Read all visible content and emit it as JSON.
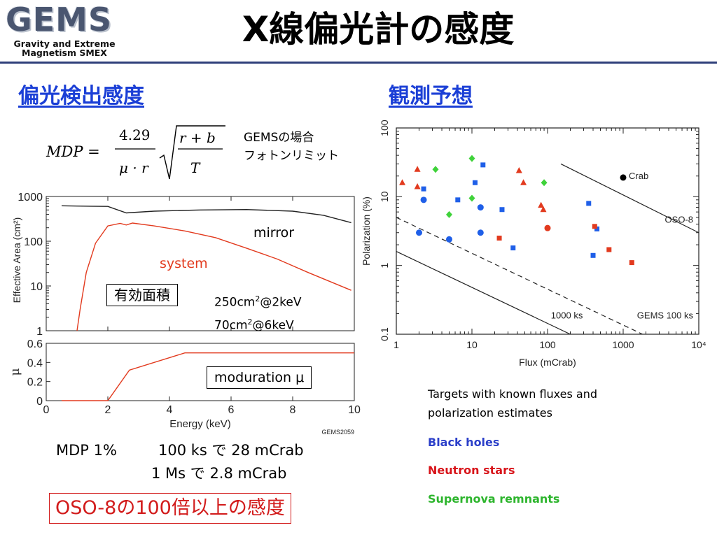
{
  "logo": {
    "word": "GEMS",
    "subtitle_line1": "Gravity and Extreme",
    "subtitle_line2": "Magnetism SMEX"
  },
  "slide_title": "X線偏光計の感度",
  "left_heading": "偏光検出感度",
  "right_heading": "観測予想",
  "gems_case": {
    "line1": "GEMSの場合",
    "line2": "フォトンリミット"
  },
  "formula": {
    "lhs": "MDP =",
    "numerator": "4.29",
    "denominator": "μ · r",
    "sqrt_numerator": "r + b",
    "sqrt_denominator": "T"
  },
  "effective_area_label": "有効面積",
  "area_values": {
    "line1_pre": "250cm",
    "line1_post": "@2keV",
    "line2_pre": "70cm",
    "line2_post": "@6keV",
    "sup": "2"
  },
  "modulation_label": "moduration μ",
  "mdp_lines": {
    "lead": "MDP 1%",
    "line1": "100 ks で 28 mCrab",
    "line2": "1 Ms で 2.8 mCrab"
  },
  "oso_statement": "OSO-8の100倍以上の感度",
  "targets_text": {
    "line1": "Targets with known fluxes and",
    "line2": "polarization estimates"
  },
  "legend": {
    "black_holes": "Black holes",
    "neutron_stars": "Neutron stars",
    "supernova_remnants": "Supernova remnants"
  },
  "colors": {
    "black_holes": "#1f5fe8",
    "neutron_stars": "#e23a1e",
    "supernova_remnants": "#3fd23a",
    "system_curve": "#e23a1e",
    "heading": "#1b3fd6",
    "legend_black_holes": "#2b3fc9",
    "legend_neutron_stars": "#d8141a",
    "legend_snr": "#2db52d"
  },
  "chart_data": [
    {
      "type": "line",
      "ylabel": "Effective Area (cm²)",
      "ylog": true,
      "ylim": [
        1,
        1000
      ],
      "xlim": [
        0,
        10
      ],
      "yticks": [
        "1000",
        "100",
        "10",
        "1"
      ],
      "series": [
        {
          "name": "mirror",
          "points": [
            [
              0.5,
              620
            ],
            [
              1.0,
              610
            ],
            [
              2.0,
              600
            ],
            [
              2.6,
              430
            ],
            [
              3.5,
              470
            ],
            [
              5.0,
              500
            ],
            [
              6.5,
              510
            ],
            [
              8.0,
              470
            ],
            [
              9.0,
              380
            ],
            [
              9.9,
              260
            ]
          ]
        },
        {
          "name": "system",
          "points": [
            [
              1.0,
              1
            ],
            [
              1.1,
              3
            ],
            [
              1.3,
              20
            ],
            [
              1.6,
              90
            ],
            [
              2.0,
              220
            ],
            [
              2.4,
              250
            ],
            [
              2.6,
              230
            ],
            [
              2.8,
              255
            ],
            [
              3.5,
              220
            ],
            [
              4.5,
              170
            ],
            [
              5.5,
              120
            ],
            [
              6.5,
              70
            ],
            [
              7.5,
              40
            ],
            [
              8.5,
              20
            ],
            [
              9.9,
              8
            ]
          ]
        }
      ]
    },
    {
      "type": "line",
      "xlabel": "Energy (keV)",
      "ylabel": "μ",
      "xlim": [
        0,
        10
      ],
      "ylim": [
        0,
        0.6
      ],
      "xticks": [
        "0",
        "2",
        "4",
        "6",
        "8",
        "10"
      ],
      "yticks": [
        "0.6",
        "0.4",
        "0.2",
        "0"
      ],
      "figure_id": "GEMS2059",
      "series": [
        {
          "name": "moduration μ",
          "points": [
            [
              0.5,
              0.0
            ],
            [
              2.0,
              0.0
            ],
            [
              2.7,
              0.32
            ],
            [
              4.5,
              0.5
            ],
            [
              10,
              0.5
            ]
          ]
        }
      ]
    },
    {
      "type": "scatter",
      "xlabel": "Flux (mCrab)",
      "ylabel": "Polarization (%)",
      "xlog": true,
      "ylog": true,
      "xlim": [
        1,
        10000
      ],
      "ylim": [
        0.1,
        100
      ],
      "xticks": [
        "1",
        "10",
        "100",
        "1000",
        "10⁴"
      ],
      "yticks": [
        "100",
        "10",
        "1",
        "0.1"
      ],
      "lines": [
        {
          "name": "OSO-8",
          "points": [
            [
              150,
              30
            ],
            [
              10000,
              3
            ]
          ]
        },
        {
          "name": "GEMS 100 ks",
          "style": "dashed",
          "points": [
            [
              1,
              5
            ],
            [
              1800,
              0.1
            ]
          ]
        },
        {
          "name": "1000 ks",
          "points": [
            [
              1,
              1.6
            ],
            [
              200,
              0.1
            ]
          ]
        }
      ],
      "labeled_point": {
        "name": "Crab",
        "x": 1000,
        "y": 19
      },
      "series": [
        {
          "name": "Black holes",
          "points": [
            {
              "x": 2,
              "y": 3,
              "marker": "circle"
            },
            {
              "x": 2.3,
              "y": 9,
              "marker": "circle"
            },
            {
              "x": 5,
              "y": 2.4,
              "marker": "circle"
            },
            {
              "x": 6.5,
              "y": 9,
              "marker": "square"
            },
            {
              "x": 11,
              "y": 16,
              "marker": "square"
            },
            {
              "x": 13,
              "y": 7,
              "marker": "circle"
            },
            {
              "x": 13,
              "y": 3,
              "marker": "circle"
            },
            {
              "x": 14,
              "y": 29,
              "marker": "square"
            },
            {
              "x": 25,
              "y": 6.5,
              "marker": "square"
            },
            {
              "x": 35,
              "y": 1.8,
              "marker": "square"
            },
            {
              "x": 350,
              "y": 8,
              "marker": "square"
            },
            {
              "x": 400,
              "y": 1.4,
              "marker": "square"
            },
            {
              "x": 450,
              "y": 3.4,
              "marker": "square"
            },
            {
              "x": 2.3,
              "y": 13,
              "marker": "square"
            }
          ]
        },
        {
          "name": "Neutron stars",
          "points": [
            {
              "x": 1.2,
              "y": 16,
              "marker": "triangle"
            },
            {
              "x": 1.9,
              "y": 25,
              "marker": "triangle"
            },
            {
              "x": 1.9,
              "y": 14,
              "marker": "triangle"
            },
            {
              "x": 23,
              "y": 2.5,
              "marker": "square"
            },
            {
              "x": 42,
              "y": 24,
              "marker": "triangle"
            },
            {
              "x": 48,
              "y": 16,
              "marker": "triangle"
            },
            {
              "x": 82,
              "y": 7.5,
              "marker": "triangle"
            },
            {
              "x": 88,
              "y": 6.5,
              "marker": "triangle"
            },
            {
              "x": 100,
              "y": 3.5,
              "marker": "circle"
            },
            {
              "x": 420,
              "y": 3.7,
              "marker": "square"
            },
            {
              "x": 650,
              "y": 1.7,
              "marker": "square"
            },
            {
              "x": 1300,
              "y": 1.1,
              "marker": "square"
            }
          ]
        },
        {
          "name": "Supernova remnants",
          "points": [
            {
              "x": 3.3,
              "y": 25,
              "marker": "diamond"
            },
            {
              "x": 5,
              "y": 5.5,
              "marker": "diamond"
            },
            {
              "x": 10,
              "y": 36,
              "marker": "diamond"
            },
            {
              "x": 10,
              "y": 9.5,
              "marker": "diamond"
            },
            {
              "x": 90,
              "y": 16,
              "marker": "diamond"
            }
          ]
        }
      ]
    }
  ]
}
